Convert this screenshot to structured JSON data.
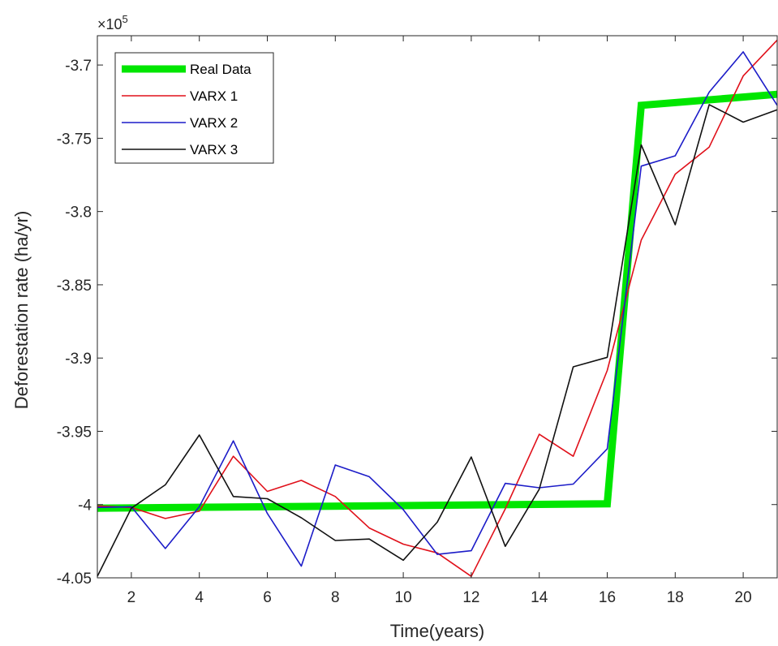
{
  "chart_data": {
    "type": "line",
    "xlabel": "Time(years)",
    "ylabel": "Deforestation rate (ha/yr)",
    "exponent_label": "×10",
    "exponent_power": "5",
    "xlim": [
      1,
      21
    ],
    "ylim": [
      -4.05,
      -3.68
    ],
    "x_ticks": [
      2,
      4,
      6,
      8,
      10,
      12,
      14,
      16,
      18,
      20
    ],
    "x_tick_labels": [
      "2",
      "4",
      "6",
      "8",
      "10",
      "12",
      "14",
      "16",
      "18",
      "20"
    ],
    "y_ticks": [
      -4.05,
      -4,
      -3.95,
      -3.9,
      -3.85,
      -3.8,
      -3.75,
      -3.7
    ],
    "y_tick_labels": [
      "-4.05",
      "-4",
      "-3.95",
      "-3.9",
      "-3.85",
      "-3.8",
      "-3.75",
      "-3.7"
    ],
    "legend_position": "top-left",
    "grid": false,
    "series": [
      {
        "name": "Real Data",
        "color": "#00e600",
        "x": [
          1,
          16,
          17,
          21
        ],
        "y": [
          -4.0025,
          -3.9995,
          -3.7275,
          -3.72
        ]
      },
      {
        "name": "VARX 1",
        "color": "#e0101a",
        "x": [
          1,
          2,
          3,
          4,
          5,
          6,
          7,
          8,
          9,
          10,
          11,
          12,
          13,
          14,
          15,
          16,
          17,
          18,
          19,
          20,
          21
        ],
        "y": [
          -4.001,
          -4.002,
          -4.0095,
          -4.0045,
          -3.967,
          -3.991,
          -3.9835,
          -3.9945,
          -4.016,
          -4.027,
          -4.033,
          -4.049,
          -4.003,
          -3.952,
          -3.967,
          -3.9085,
          -3.8195,
          -3.7745,
          -3.756,
          -3.7075,
          -3.683
        ]
      },
      {
        "name": "VARX 2",
        "color": "#1c1cc8",
        "x": [
          1,
          2,
          3,
          4,
          5,
          6,
          7,
          8,
          9,
          10,
          11,
          12,
          13,
          14,
          15,
          16,
          17,
          18,
          19,
          20,
          21
        ],
        "y": [
          -4.002,
          -4.0015,
          -4.03,
          -4.0015,
          -3.9565,
          -4.006,
          -4.042,
          -3.973,
          -3.981,
          -4.0035,
          -4.034,
          -4.0315,
          -3.9855,
          -3.9885,
          -3.986,
          -3.962,
          -3.769,
          -3.762,
          -3.7185,
          -3.691,
          -3.7275
        ]
      },
      {
        "name": "VARX 3",
        "color": "#111111",
        "x": [
          1,
          2,
          3,
          4,
          5,
          6,
          7,
          8,
          9,
          10,
          11,
          12,
          13,
          14,
          15,
          16,
          17,
          18,
          19,
          20,
          21
        ],
        "y": [
          -4.049,
          -4.0025,
          -3.9865,
          -3.9525,
          -3.9945,
          -3.996,
          -4.009,
          -4.0245,
          -4.0235,
          -4.038,
          -4.012,
          -3.9675,
          -4.0285,
          -3.9895,
          -3.906,
          -3.8995,
          -3.7545,
          -3.809,
          -3.727,
          -3.739,
          -3.7305
        ]
      }
    ]
  }
}
